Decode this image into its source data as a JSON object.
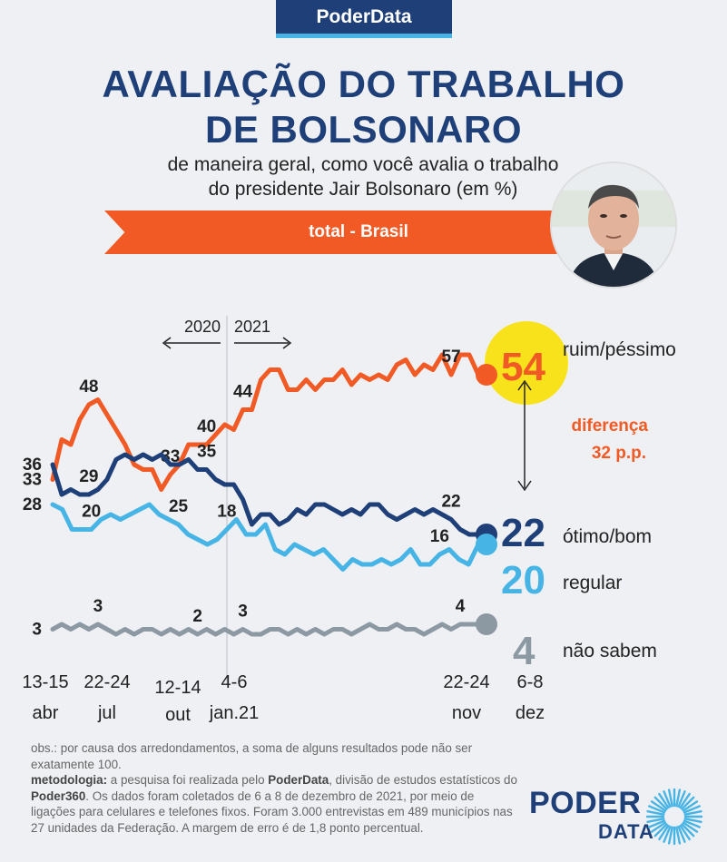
{
  "brand": "PoderData",
  "title_line1": "AVALIAÇÃO DO TRABALHO",
  "title_line2": "DE BOLSONARO",
  "subtitle_line1": "de maneira geral, como você avalia o trabalho",
  "subtitle_line2": "do presidente Jair Bolsonaro (em %)",
  "banner": "total - Brasil",
  "year_left": "2020",
  "year_right": "2021",
  "difference_label": "diferença",
  "difference_value": "32 p.p.",
  "notes": {
    "obs": "obs.: por causa dos arredondamentos, a soma de alguns resultados pode não ser exatamente 100.",
    "metodologia_label": "metodologia:",
    "metodologia_a": " a pesquisa foi realizada pelo ",
    "metodologia_b": "PoderData",
    "metodologia_c": ", divisão de estudos estatísticos do ",
    "metodologia_d": "Poder360",
    "metodologia_e": ". Os dados foram coletados de 6 a 8 de dezembro de 2021, por meio de ligações para celulares e telefones fixos. Foram 3.000 entrevistas em 489 municípios nas 27 unidades da Federação. A margem de erro é de 1,8 ponto percentual."
  },
  "logo": {
    "line1": "PODER",
    "line2": "DATA"
  },
  "colors": {
    "ruim": "#f15a24",
    "otimo": "#1e3f78",
    "regular": "#47b4e6",
    "nao_sabem": "#8c99a3",
    "title": "#1e3f78",
    "highlight": "#f8e21c"
  },
  "chart_data": {
    "type": "line",
    "x_ticks": [
      {
        "line1": "13-15",
        "line2": "abr"
      },
      {
        "line1": "22-24",
        "line2": "jul"
      },
      {
        "line1": "12-14",
        "line2": "out"
      },
      {
        "line1": "4-6",
        "line2": "jan.21"
      },
      {
        "line1": "22-24",
        "line2": "nov"
      },
      {
        "line1": "6-8",
        "line2": "dez"
      }
    ],
    "series": [
      {
        "key": "ruim",
        "name": "ruim/péssimo",
        "final": 54,
        "values": [
          33,
          41,
          40,
          45,
          48,
          49,
          46,
          43,
          40,
          36,
          35,
          35,
          31,
          34,
          36,
          40,
          40,
          40,
          42,
          44,
          43,
          47,
          47,
          53,
          55,
          55,
          51,
          51,
          53,
          51,
          53,
          53,
          55,
          52,
          54,
          53,
          54,
          53,
          56,
          57,
          54,
          56,
          55,
          58,
          54,
          58,
          58,
          54
        ],
        "labels": [
          {
            "i": 0,
            "text": "33"
          },
          {
            "i": 4,
            "text": "48"
          },
          {
            "i": 13,
            "text": "33"
          },
          {
            "i": 17,
            "text": "40"
          },
          {
            "i": 21,
            "text": "44"
          },
          {
            "i": 44,
            "text": "57"
          }
        ]
      },
      {
        "key": "otimo",
        "name": "ótimo/bom",
        "final": 22,
        "values": [
          36,
          30,
          31,
          30,
          30,
          31,
          33,
          37,
          38,
          37,
          38,
          37,
          38,
          36,
          36,
          37,
          35,
          35,
          33,
          32,
          32,
          29,
          24,
          26,
          26,
          24,
          25,
          27,
          26,
          28,
          28,
          27,
          26,
          27,
          26,
          28,
          28,
          26,
          25,
          26,
          27,
          26,
          27,
          26,
          25,
          23,
          22,
          22
        ],
        "labels": [
          {
            "i": 0,
            "text": "36"
          },
          {
            "i": 4,
            "text": "29"
          },
          {
            "i": 17,
            "text": "35"
          },
          {
            "i": 44,
            "text": "22"
          }
        ]
      },
      {
        "key": "regular",
        "name": "regular",
        "final": 20,
        "values": [
          28,
          27,
          23,
          23,
          23,
          25,
          26,
          25,
          26,
          27,
          28,
          26,
          25,
          24,
          22,
          21,
          20,
          21,
          23,
          25,
          22,
          22,
          24,
          19,
          18,
          20,
          19,
          18,
          19,
          17,
          15,
          17,
          16,
          16,
          17,
          16,
          17,
          19,
          16,
          16,
          18,
          19,
          17,
          16,
          20
        ],
        "labels": [
          {
            "i": 0,
            "text": "28"
          },
          {
            "i": 4,
            "text": "20"
          },
          {
            "i": 13,
            "text": "25"
          },
          {
            "i": 18,
            "text": "18"
          },
          {
            "i": 40,
            "text": "16"
          }
        ]
      },
      {
        "key": "nao_sabem",
        "name": "não sabem",
        "final": 4,
        "values": [
          3,
          4,
          3,
          4,
          3,
          4,
          3,
          2,
          3,
          2,
          3,
          3,
          2,
          3,
          2,
          3,
          2,
          3,
          2,
          3,
          2,
          3,
          2,
          2,
          3,
          3,
          2,
          3,
          2,
          3,
          2,
          3,
          3,
          2,
          3,
          4,
          3,
          3,
          4,
          3,
          3,
          2,
          3,
          4,
          3,
          4,
          4,
          4
        ],
        "labels": [
          {
            "i": 0,
            "text": "3"
          },
          {
            "i": 5,
            "text": "3"
          },
          {
            "i": 16,
            "text": "2"
          },
          {
            "i": 21,
            "text": "3"
          },
          {
            "i": 45,
            "text": "4"
          }
        ]
      }
    ]
  }
}
